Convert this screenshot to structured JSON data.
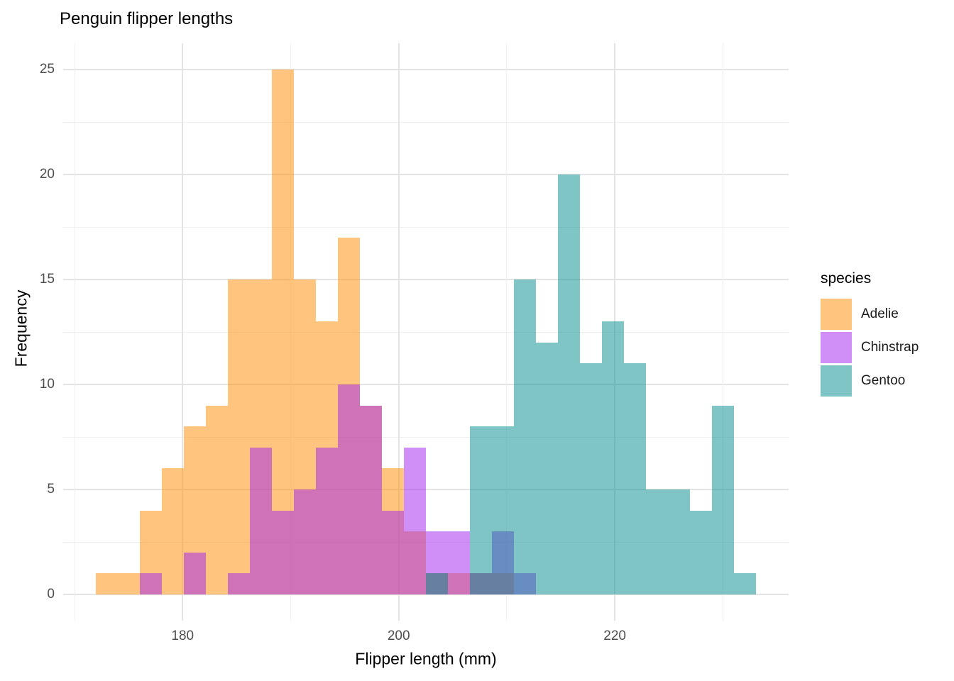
{
  "title": "Penguin flipper lengths",
  "axes": {
    "x_title": "Flipper length (mm)",
    "y_title": "Frequency"
  },
  "legend": {
    "title": "species",
    "items": [
      "Adelie",
      "Chinstrap",
      "Gentoo"
    ]
  },
  "colors": {
    "background": "#ffffff",
    "grid_major": "#e4e4e4",
    "grid_minor": "#efefef",
    "tick_label": "#4d4d4d",
    "adelie_fill_on_white": "#ffc580",
    "chinstrap_fill_on_white": "#d090f8",
    "gentoo_fill_on_white": "#80c5c5"
  },
  "chart_data": {
    "type": "bar",
    "subtype": "overlaid-histogram",
    "title": "Penguin flipper lengths",
    "xlabel": "Flipper length (mm)",
    "ylabel": "Frequency",
    "legend_title": "species",
    "legend_position": "right",
    "grid": true,
    "alpha": 0.5,
    "bin_edges_mm": [
      172.0,
      174.034,
      176.069,
      178.103,
      180.138,
      182.172,
      184.207,
      186.241,
      188.276,
      190.31,
      192.345,
      194.379,
      196.414,
      198.448,
      200.483,
      202.517,
      204.552,
      206.586,
      208.621,
      210.655,
      212.69,
      214.724,
      216.759,
      218.793,
      220.828,
      222.862,
      224.897,
      226.931,
      228.966,
      231.0,
      233.034
    ],
    "series": [
      {
        "name": "Adelie",
        "fill_hex": "#FF8C00",
        "fill_rgba": "rgba(255,140,0,0.5)",
        "counts": [
          1,
          1,
          4,
          6,
          8,
          9,
          15,
          15,
          25,
          15,
          13,
          17,
          9,
          6,
          3,
          1,
          1,
          1,
          1,
          0,
          0,
          0,
          0,
          0,
          0,
          0,
          0,
          0,
          0,
          0
        ]
      },
      {
        "name": "Chinstrap",
        "fill_hex": "#A020F0",
        "fill_rgba": "rgba(160,32,240,0.5)",
        "counts": [
          0,
          0,
          1,
          0,
          2,
          0,
          1,
          7,
          4,
          5,
          7,
          10,
          9,
          4,
          7,
          3,
          3,
          1,
          3,
          1,
          0,
          0,
          0,
          0,
          0,
          0,
          0,
          0,
          0,
          0
        ]
      },
      {
        "name": "Gentoo",
        "fill_hex": "#008B8B",
        "fill_rgba": "rgba(0,139,139,0.5)",
        "counts": [
          0,
          0,
          0,
          0,
          0,
          0,
          0,
          0,
          0,
          0,
          0,
          0,
          0,
          0,
          0,
          1,
          0,
          8,
          8,
          15,
          12,
          20,
          11,
          13,
          11,
          5,
          5,
          4,
          9,
          1
        ]
      }
    ],
    "x_ticks_major": [
      180,
      200,
      220
    ],
    "x_ticks_minor": [
      170,
      190,
      210,
      230
    ],
    "y_ticks_major": [
      0,
      5,
      10,
      15,
      20,
      25
    ],
    "y_ticks_minor": [
      2.5,
      7.5,
      12.5,
      17.5,
      22.5
    ],
    "xlim": [
      168.948,
      236.086
    ],
    "ylim": [
      -1.25,
      26.25
    ]
  }
}
